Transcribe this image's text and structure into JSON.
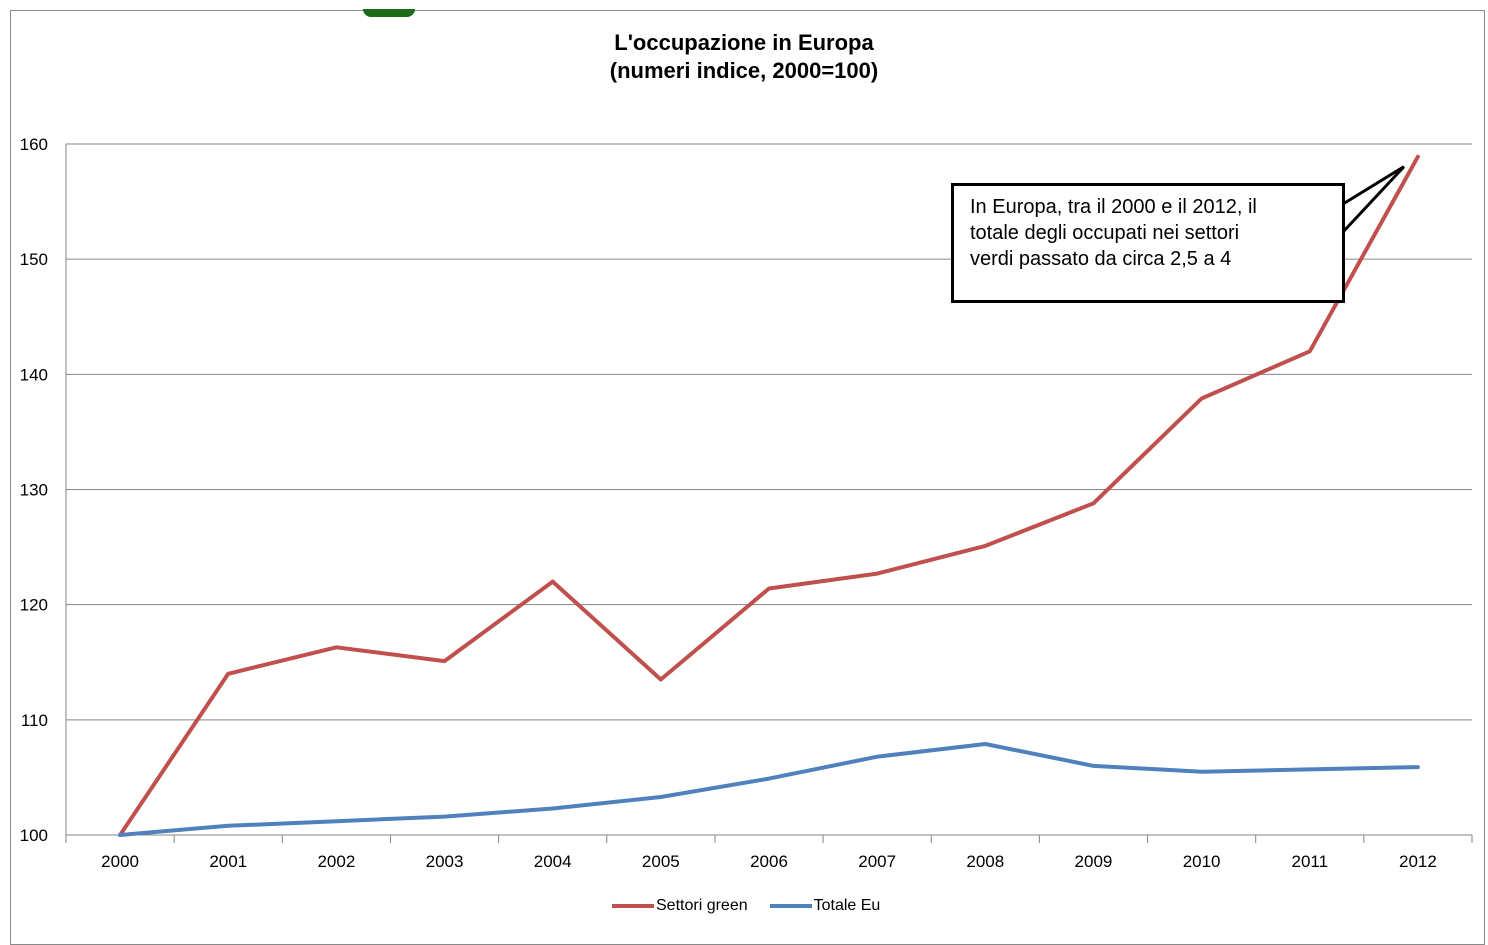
{
  "chart_data": {
    "type": "line",
    "title": "L'occupazione in Europa",
    "subtitle": "(numeri indice, 2000=100)",
    "categories": [
      "2000",
      "2001",
      "2002",
      "2003",
      "2004",
      "2005",
      "2006",
      "2007",
      "2008",
      "2009",
      "2010",
      "2011",
      "2012"
    ],
    "ylim": [
      100,
      160
    ],
    "yticks": [
      100,
      110,
      120,
      130,
      140,
      150,
      160
    ],
    "grid": true,
    "legend_position": "bottom",
    "series": [
      {
        "name": "Settori green",
        "color": "#c0504d",
        "values": [
          100,
          114,
          116.3,
          115.1,
          122,
          113.5,
          121.4,
          122.7,
          125.1,
          128.8,
          137.9,
          142,
          158.9
        ]
      },
      {
        "name": "Totale Eu",
        "color": "#4f81bd",
        "values": [
          100,
          100.8,
          101.2,
          101.6,
          102.3,
          103.3,
          104.9,
          106.8,
          107.9,
          106,
          105.5,
          105.7,
          105.9
        ]
      }
    ],
    "annotation": {
      "lines": [
        "In Europa, tra il 2000 e il 2012, il",
        "totale degli occupati nei settori",
        "verdi passato da circa 2,5 a 4"
      ]
    }
  }
}
